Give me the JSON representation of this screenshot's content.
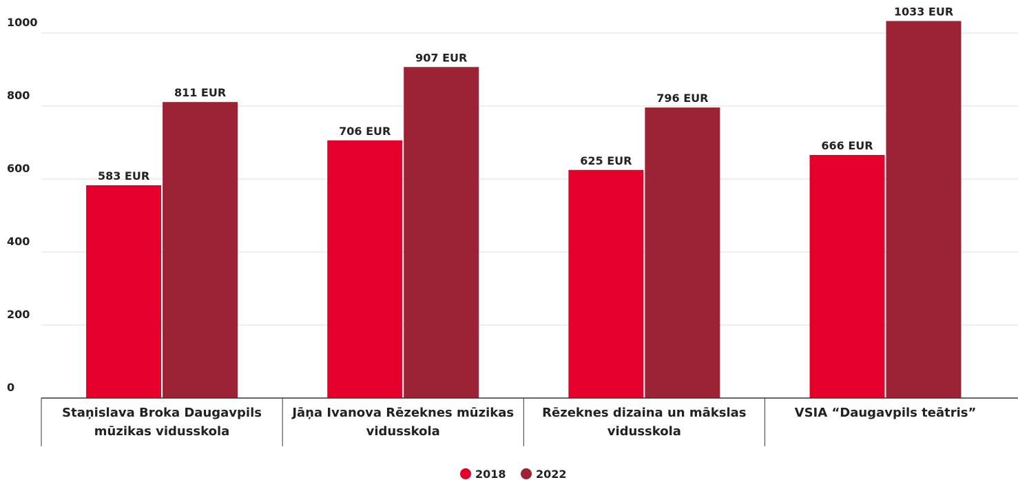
{
  "chart_data": {
    "type": "bar",
    "categories": [
      "Staņislava Broka Daugavpils mūzikas vidusskola",
      "Jāņa Ivanova Rēzeknes mūzikas vidusskola",
      "Rēzeknes dizaina un mākslas vidusskola",
      "VSIA “Daugavpils teātris”"
    ],
    "series": [
      {
        "name": "2018",
        "color": "#e4002b",
        "values": [
          583,
          706,
          625,
          666
        ],
        "value_labels": [
          "583 EUR",
          "706 EUR",
          "625 EUR",
          "666 EUR"
        ]
      },
      {
        "name": "2022",
        "color": "#9b2335",
        "values": [
          811,
          907,
          796,
          1033
        ],
        "value_labels": [
          "811 EUR",
          "907 EUR",
          "796 EUR",
          "1033 EUR"
        ]
      }
    ],
    "ylim": [
      0,
      1000
    ],
    "yticks": [
      0,
      200,
      400,
      600,
      800,
      1000
    ],
    "grid": true,
    "legend": "bottom"
  }
}
